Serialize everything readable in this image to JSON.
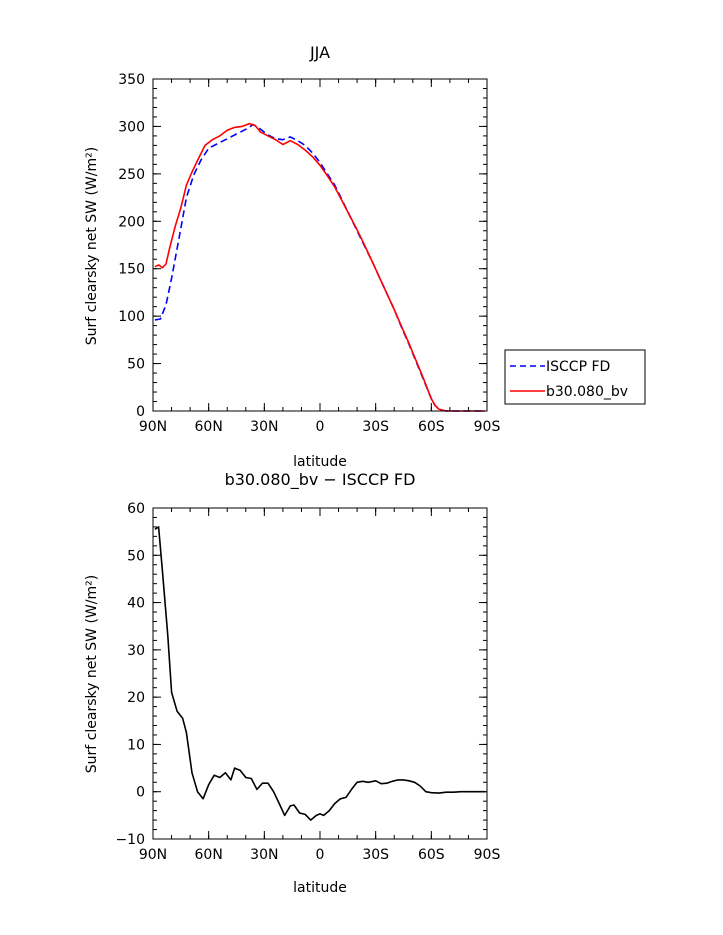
{
  "chart_data": [
    {
      "type": "line",
      "title": "JJA",
      "xlabel": "latitude",
      "ylabel": "Surf clearsky net SW (W/m²)",
      "xlim": [
        90,
        -90
      ],
      "ylim": [
        0,
        350
      ],
      "xticks": [
        90,
        60,
        30,
        0,
        -30,
        -60,
        -90
      ],
      "xtick_labels": [
        "90N",
        "60N",
        "30N",
        "0",
        "30S",
        "60S",
        "90S"
      ],
      "yticks": [
        0,
        50,
        100,
        150,
        200,
        250,
        300,
        350
      ],
      "ytick_labels": [
        "0",
        "50",
        "100",
        "150",
        "200",
        "250",
        "300",
        "350"
      ],
      "legend": "right",
      "series": [
        {
          "name": "ISCCP FD",
          "color": "#0000ff",
          "style": "dashed",
          "x": [
            89,
            86,
            83,
            80,
            76,
            72,
            68,
            64,
            60,
            55,
            50,
            45,
            40,
            36,
            32,
            28,
            24,
            20,
            16,
            12,
            8,
            4,
            0,
            -4,
            -8,
            -12,
            -16,
            -20,
            -24,
            -28,
            -32,
            -36,
            -40,
            -44,
            -48,
            -52,
            -56,
            -60,
            -62,
            -64,
            -66,
            -68,
            -70,
            -75,
            -80,
            -85,
            -89
          ],
          "values": [
            96,
            97,
            112,
            140,
            182,
            225,
            249,
            265,
            277,
            282,
            287,
            292,
            297,
            302,
            297,
            291,
            287,
            286,
            289,
            285,
            280,
            272,
            262,
            250,
            238,
            222,
            206,
            190,
            174,
            158,
            141,
            124,
            107,
            88,
            70,
            51,
            32,
            13,
            6,
            2,
            1,
            0,
            0,
            0,
            0,
            0,
            0
          ]
        },
        {
          "name": "b30.080_bv",
          "color": "#ff0000",
          "style": "solid",
          "x": [
            89,
            87,
            85,
            83,
            81,
            78,
            75,
            72,
            69,
            66,
            62,
            58,
            54,
            50,
            46,
            42,
            38,
            35,
            32,
            28,
            24,
            20,
            16,
            12,
            8,
            4,
            0,
            -4,
            -8,
            -12,
            -16,
            -20,
            -24,
            -28,
            -32,
            -36,
            -40,
            -44,
            -48,
            -52,
            -56,
            -60,
            -62,
            -64,
            -66,
            -68,
            -70,
            -75,
            -80,
            -85,
            -89
          ],
          "values": [
            152,
            154,
            151,
            155,
            172,
            195,
            214,
            238,
            252,
            264,
            280,
            286,
            290,
            296,
            299,
            300,
            303,
            301,
            294,
            290,
            286,
            281,
            285,
            281,
            275,
            268,
            259,
            248,
            236,
            221,
            206,
            191,
            175,
            158,
            141,
            124,
            107,
            89,
            71,
            52,
            33,
            13,
            6,
            2,
            1,
            0,
            0,
            0,
            0,
            0,
            0
          ]
        }
      ]
    },
    {
      "type": "line",
      "title": "b30.080_bv − ISCCP FD",
      "xlabel": "latitude",
      "ylabel": "Surf clearsky net SW (W/m²)",
      "xlim": [
        90,
        -90
      ],
      "ylim": [
        -10,
        60
      ],
      "xticks": [
        90,
        60,
        30,
        0,
        -30,
        -60,
        -90
      ],
      "xtick_labels": [
        "90N",
        "60N",
        "30N",
        "0",
        "30S",
        "60S",
        "90S"
      ],
      "yticks": [
        -10,
        0,
        10,
        20,
        30,
        40,
        50,
        60
      ],
      "ytick_labels": [
        "−10",
        "0",
        "10",
        "20",
        "30",
        "40",
        "50",
        "60"
      ],
      "series": [
        {
          "color": "#000000",
          "style": "solid",
          "x": [
            89,
            87,
            85,
            82,
            80,
            77,
            74,
            72,
            69,
            66,
            63,
            60,
            57,
            54,
            51,
            48,
            46,
            43,
            40,
            37,
            34,
            31,
            28,
            25,
            22,
            19,
            16,
            14,
            11,
            8,
            5,
            2,
            0,
            -2,
            -5,
            -8,
            -11,
            -14,
            -17,
            -20,
            -23,
            -26,
            -30,
            -33,
            -36,
            -39,
            -42,
            -45,
            -48,
            -51,
            -54,
            -57,
            -60,
            -64,
            -68,
            -72,
            -76,
            -80,
            -85,
            -89
          ],
          "values": [
            55.5,
            56,
            47,
            33,
            21,
            17,
            15.5,
            12.5,
            4,
            0,
            -1.5,
            1.5,
            3.5,
            3,
            4,
            2.5,
            5,
            4.5,
            3,
            2.8,
            0.5,
            1.8,
            1.8,
            0,
            -2.5,
            -5,
            -3,
            -2.8,
            -4.5,
            -4.8,
            -6,
            -5,
            -4.7,
            -5,
            -4,
            -2.5,
            -1.5,
            -1.2,
            0.5,
            2,
            2.2,
            2,
            2.3,
            1.7,
            1.8,
            2.2,
            2.5,
            2.5,
            2.3,
            2,
            1.2,
            0,
            -0.2,
            -0.3,
            -0.1,
            -0.1,
            0,
            0,
            0,
            0
          ]
        }
      ]
    }
  ]
}
